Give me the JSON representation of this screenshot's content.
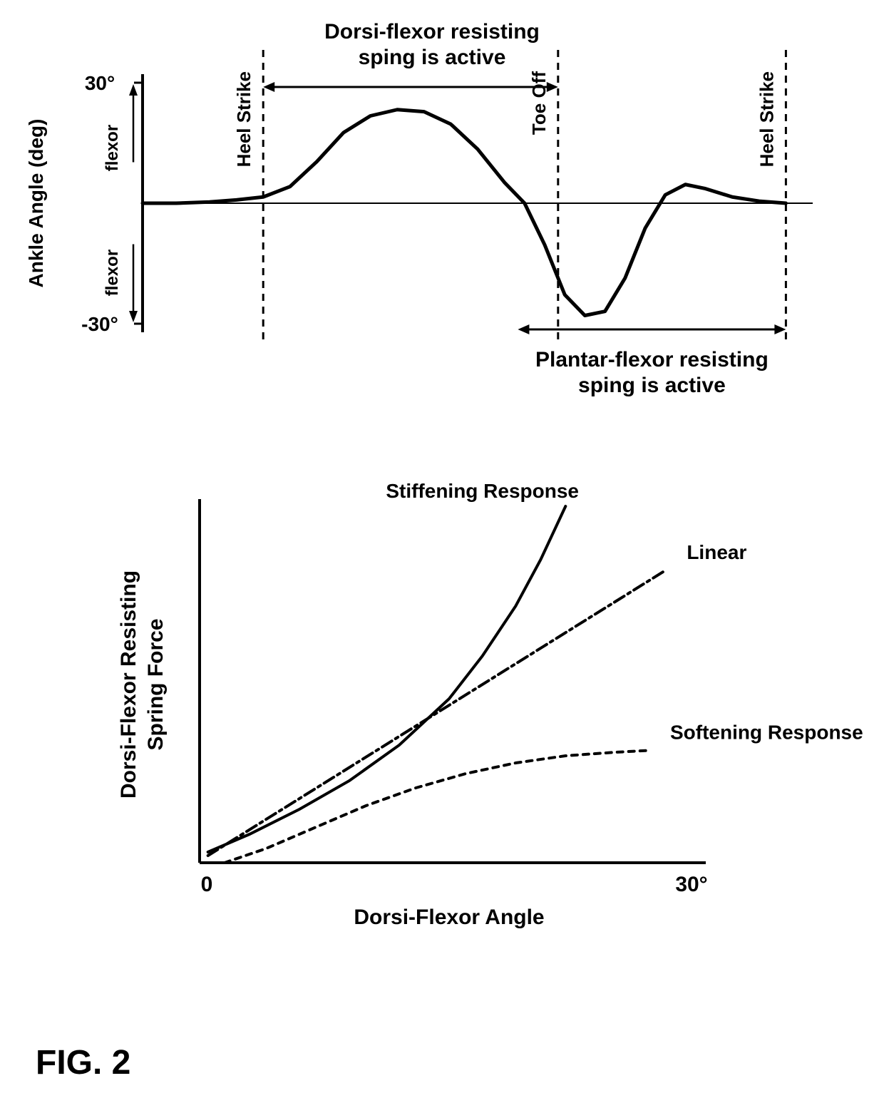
{
  "figure_label": "FIG. 2",
  "colors": {
    "stroke": "#000000",
    "background": "#ffffff"
  },
  "top_chart": {
    "type": "line",
    "y_axis_label": "Ankle Angle (deg)",
    "y_tick_top": "30°",
    "y_tick_bottom": "-30°",
    "y_sub_label_top": "flexor",
    "y_sub_label_bottom": "flexor",
    "ylim": [
      -30,
      30
    ],
    "xlim": [
      0,
      100
    ],
    "vlines": [
      {
        "x": 18,
        "label": "Heel Strike"
      },
      {
        "x": 62,
        "label": "Toe Off"
      },
      {
        "x": 96,
        "label": "Heel Strike"
      }
    ],
    "annotation_top": "Dorsi-flexor resisting sping is active",
    "annotation_top_range": [
      18,
      62
    ],
    "annotation_bottom": "Plantar-flexor resisting sping is active",
    "annotation_bottom_range": [
      56,
      96
    ],
    "curve": [
      [
        0,
        0
      ],
      [
        5,
        0
      ],
      [
        10,
        0.3
      ],
      [
        14,
        0.8
      ],
      [
        18,
        1.5
      ],
      [
        22,
        4
      ],
      [
        26,
        10
      ],
      [
        30,
        17
      ],
      [
        34,
        21
      ],
      [
        38,
        22.5
      ],
      [
        42,
        22
      ],
      [
        46,
        19
      ],
      [
        50,
        13
      ],
      [
        54,
        5
      ],
      [
        57,
        0
      ],
      [
        60,
        -10
      ],
      [
        63,
        -22
      ],
      [
        66,
        -27
      ],
      [
        69,
        -26
      ],
      [
        72,
        -18
      ],
      [
        75,
        -6
      ],
      [
        78,
        2
      ],
      [
        81,
        4.5
      ],
      [
        84,
        3.5
      ],
      [
        88,
        1.5
      ],
      [
        92,
        0.5
      ],
      [
        96,
        0
      ]
    ],
    "stroke_color": "#000000",
    "stroke_width": 5,
    "axis_width": 4,
    "dash_pattern": "10,8",
    "label_fontsize": 28,
    "tick_fontsize": 28,
    "vline_label_fontsize": 26,
    "annotation_fontsize": 30
  },
  "bottom_chart": {
    "type": "line",
    "x_axis_label": "Dorsi-Flexor Angle",
    "y_axis_label": "Dorsi-Flexor Resisting Spring Force",
    "x_tick_left": "0",
    "x_tick_right": "30°",
    "xlim": [
      0,
      30
    ],
    "ylim": [
      0,
      100
    ],
    "series": [
      {
        "label": "Stiffening Response",
        "dash": "none",
        "points": [
          [
            0.5,
            3
          ],
          [
            3,
            8
          ],
          [
            6,
            15
          ],
          [
            9,
            23
          ],
          [
            12,
            33
          ],
          [
            15,
            46
          ],
          [
            17,
            58
          ],
          [
            19,
            72
          ],
          [
            20.5,
            85
          ],
          [
            22,
            100
          ]
        ]
      },
      {
        "label": "Linear",
        "dash": "16,6,4,6",
        "points": [
          [
            0.5,
            2
          ],
          [
            28,
            82
          ]
        ]
      },
      {
        "label": "Softening Response",
        "dash": "8,8",
        "points": [
          [
            1.5,
            0
          ],
          [
            4,
            4
          ],
          [
            7,
            10
          ],
          [
            10,
            16
          ],
          [
            13,
            21
          ],
          [
            16,
            25
          ],
          [
            19,
            28
          ],
          [
            22,
            30
          ],
          [
            25,
            31
          ],
          [
            27,
            31.5
          ]
        ]
      }
    ],
    "stroke_color": "#000000",
    "stroke_width": 4,
    "axis_width": 4,
    "label_fontsize": 30,
    "tick_fontsize": 30,
    "series_label_fontsize": 28
  }
}
